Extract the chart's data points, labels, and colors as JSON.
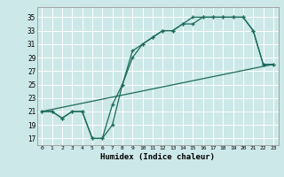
{
  "xlabel": "Humidex (Indice chaleur)",
  "background_color": "#cde8e8",
  "grid_color": "#ffffff",
  "line_color": "#1a6b5a",
  "xlim": [
    -0.5,
    23.5
  ],
  "ylim": [
    16.0,
    36.5
  ],
  "yticks": [
    17,
    19,
    21,
    23,
    25,
    27,
    29,
    31,
    33,
    35
  ],
  "xticks": [
    0,
    1,
    2,
    3,
    4,
    5,
    6,
    7,
    8,
    9,
    10,
    11,
    12,
    13,
    14,
    15,
    16,
    17,
    18,
    19,
    20,
    21,
    22,
    23
  ],
  "line1_x": [
    0,
    1,
    2,
    3,
    4,
    5,
    6,
    7,
    8,
    9,
    10,
    11,
    12,
    13,
    14,
    15,
    16,
    17,
    18,
    19,
    20,
    21,
    22,
    23
  ],
  "line1_y": [
    21,
    21,
    20,
    21,
    21,
    17,
    17,
    19,
    25,
    30,
    31,
    32,
    33,
    33,
    34,
    35,
    35,
    35,
    35,
    35,
    35,
    33,
    28,
    28
  ],
  "line2_x": [
    0,
    1,
    2,
    3,
    4,
    5,
    6,
    7,
    8,
    9,
    10,
    11,
    12,
    13,
    14,
    15,
    16,
    17,
    18,
    19,
    20,
    21,
    22,
    23
  ],
  "line2_y": [
    21,
    21,
    20,
    21,
    21,
    17,
    17,
    22,
    25,
    29,
    31,
    32,
    33,
    33,
    34,
    34,
    35,
    35,
    35,
    35,
    35,
    33,
    28,
    28
  ],
  "line3_x": [
    0,
    23
  ],
  "line3_y": [
    21,
    28
  ]
}
